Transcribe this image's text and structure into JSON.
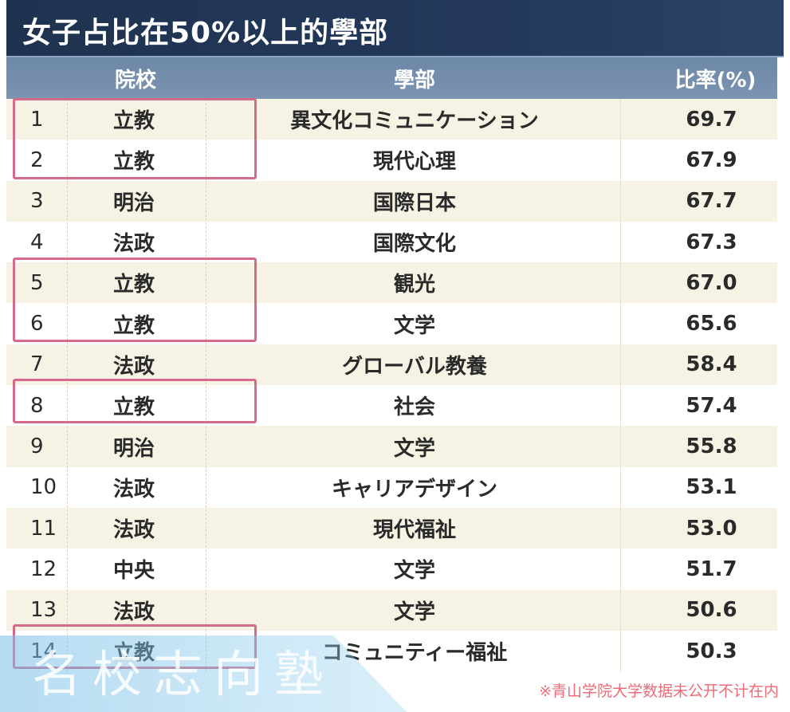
{
  "title": "女子占比在50%以上的學部",
  "columns": {
    "school": "院校",
    "department": "學部",
    "rate": "比率(%)"
  },
  "rows": [
    {
      "rank": "1",
      "school": "立教",
      "department": "異文化コミュニケーション",
      "rate": "69.7"
    },
    {
      "rank": "2",
      "school": "立教",
      "department": "現代心理",
      "rate": "67.9"
    },
    {
      "rank": "3",
      "school": "明治",
      "department": "国際日本",
      "rate": "67.7"
    },
    {
      "rank": "4",
      "school": "法政",
      "department": "国際文化",
      "rate": "67.3"
    },
    {
      "rank": "5",
      "school": "立教",
      "department": "観光",
      "rate": "67.0"
    },
    {
      "rank": "6",
      "school": "立教",
      "department": "文学",
      "rate": "65.6"
    },
    {
      "rank": "7",
      "school": "法政",
      "department": "グローバル教養",
      "rate": "58.4"
    },
    {
      "rank": "8",
      "school": "立教",
      "department": "社会",
      "rate": "57.4"
    },
    {
      "rank": "9",
      "school": "明治",
      "department": "文学",
      "rate": "55.8"
    },
    {
      "rank": "10",
      "school": "法政",
      "department": "キャリアデザイン",
      "rate": "53.1"
    },
    {
      "rank": "11",
      "school": "法政",
      "department": "現代福祉",
      "rate": "53.0"
    },
    {
      "rank": "12",
      "school": "中央",
      "department": "文学",
      "rate": "51.7"
    },
    {
      "rank": "13",
      "school": "法政",
      "department": "文学",
      "rate": "50.6"
    },
    {
      "rank": "14",
      "school": "立教",
      "department": "コミュニティー福祉",
      "rate": "50.3"
    }
  ],
  "footnote": "※青山学院大学数据未公开不计在内",
  "watermark": "名校志向塾",
  "colors": {
    "title_bg": "#1f3350",
    "header_bg": "#6d87a6",
    "highlight": "#d66a8a",
    "footnote": "#ef6a78"
  }
}
